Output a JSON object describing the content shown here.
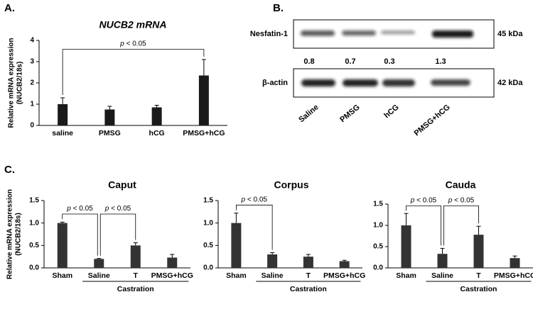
{
  "panel_labels": [
    "A.",
    "B.",
    "C."
  ],
  "blot": {
    "rows": [
      "Nesfatin-1",
      "β-actin"
    ],
    "sizes": [
      "45 kDa",
      "42 kDa"
    ],
    "lanes": [
      "Saline",
      "PMSG",
      "hCG",
      "PMSG+hCG"
    ],
    "densities": [
      0.8,
      0.7,
      0.3,
      1.3
    ]
  },
  "chart_data": [
    {
      "type": "bar",
      "title": "NUCB2 mRNA",
      "ylabel": [
        "Relative mRNA expression",
        "(NUCB2/18s)"
      ],
      "categories": [
        "saline",
        "PMSG",
        "hCG",
        "PMSG+hCG"
      ],
      "values": [
        1.0,
        0.75,
        0.85,
        2.35
      ],
      "errors": [
        0.3,
        0.15,
        0.1,
        0.75
      ],
      "color": "#1a1a1a",
      "ylim": [
        0,
        4
      ],
      "yticks": [
        0,
        1,
        2,
        3,
        4
      ],
      "annotations": [
        {
          "text": "p < 0.05",
          "between": [
            "saline",
            "PMSG+hCG"
          ]
        }
      ]
    },
    {
      "type": "bar",
      "title": "Caput",
      "ylabel": [
        "Relative mRNA expression",
        "(NUCB2/18s)"
      ],
      "categories": [
        "Sham",
        "Saline",
        "T",
        "PMSG+hCG"
      ],
      "group_label": "Castration",
      "values": [
        1.0,
        0.2,
        0.5,
        0.23
      ],
      "errors": [
        0.02,
        0.01,
        0.06,
        0.07
      ],
      "color": "#333333",
      "ylim": [
        0,
        1.5
      ],
      "yticks": [
        {
          "value": 0,
          "label": "0.0"
        },
        {
          "value": 0.5,
          "label": "0.5"
        },
        {
          "value": 1,
          "label": "1.0"
        },
        {
          "value": 1.5,
          "label": "1.5"
        }
      ],
      "annotations": [
        {
          "text": "p < 0.05",
          "between": [
            "Sham",
            "Saline"
          ]
        },
        {
          "text": "p < 0.05",
          "between": [
            "Saline",
            "T"
          ]
        }
      ]
    },
    {
      "type": "bar",
      "title": "Corpus",
      "categories": [
        "Sham",
        "Saline",
        "T",
        "PMSG+hCG"
      ],
      "group_label": "Castration",
      "values": [
        1.0,
        0.3,
        0.25,
        0.15
      ],
      "errors": [
        0.22,
        0.04,
        0.05,
        0.02
      ],
      "color": "#333333",
      "ylim": [
        0,
        1.5
      ],
      "yticks": [
        {
          "value": 0,
          "label": "0.0"
        },
        {
          "value": 0.5,
          "label": "0.5"
        },
        {
          "value": 1,
          "label": "1.0"
        },
        {
          "value": 1.5,
          "label": "1.5"
        }
      ],
      "annotations": [
        {
          "text": "p < 0.05",
          "between": [
            "Sham",
            "Saline"
          ]
        }
      ]
    },
    {
      "type": "bar",
      "title": "Cauda",
      "categories": [
        "Sham",
        "Saline",
        "T",
        "PMSG+hCG"
      ],
      "group_label": "Castration",
      "values": [
        1.0,
        0.33,
        0.78,
        0.23
      ],
      "errors": [
        0.28,
        0.13,
        0.2,
        0.05
      ],
      "color": "#333333",
      "ylim": [
        0,
        1.5
      ],
      "yticks": [
        {
          "value": 0,
          "label": "0.0"
        },
        {
          "value": 0.5,
          "label": "0.5"
        },
        {
          "value": 1,
          "label": "1.0"
        },
        {
          "value": 1.5,
          "label": "1.5"
        }
      ],
      "annotations": [
        {
          "text": "p < 0.05",
          "between": [
            "Sham",
            "Saline"
          ]
        },
        {
          "text": "p < 0.05",
          "between": [
            "Saline",
            "T"
          ]
        }
      ]
    }
  ]
}
